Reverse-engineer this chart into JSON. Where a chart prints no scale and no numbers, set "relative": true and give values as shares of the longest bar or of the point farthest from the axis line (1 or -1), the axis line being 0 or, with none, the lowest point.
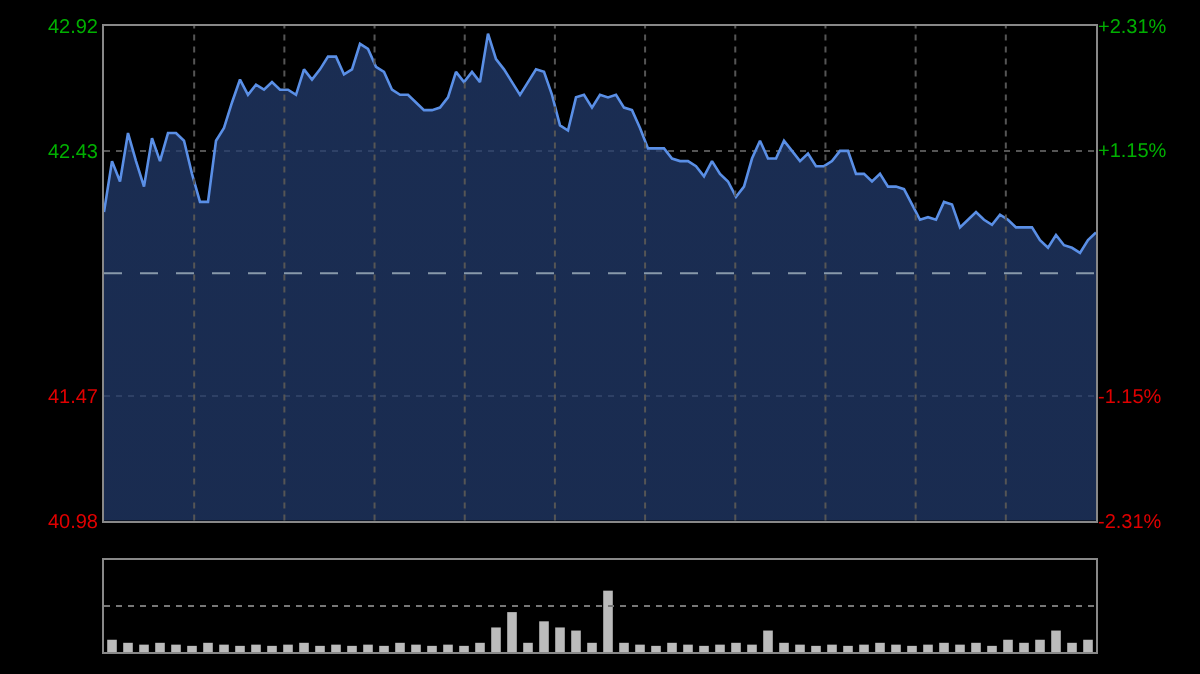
{
  "chart_data": [
    {
      "type": "area",
      "categories": [
        null,
        null,
        null,
        null,
        null,
        null,
        null,
        null,
        null,
        null,
        null,
        null,
        null,
        null,
        null,
        null,
        null,
        null,
        null,
        null,
        null,
        null,
        null,
        null,
        null,
        null,
        null,
        null,
        null,
        null,
        null,
        null,
        null,
        null,
        null,
        null,
        null,
        null,
        null,
        null,
        null,
        null,
        null,
        null,
        null,
        null,
        null,
        null,
        null,
        null,
        null,
        null,
        null,
        null,
        null,
        null,
        null,
        null,
        null,
        null,
        null,
        null,
        null,
        null,
        null,
        null,
        null,
        null,
        null,
        null,
        null,
        null,
        null,
        null,
        null,
        null,
        null,
        null,
        null,
        null,
        null,
        null,
        null,
        null,
        null,
        null,
        null,
        null,
        null,
        null,
        null,
        null,
        null,
        null,
        null,
        null,
        null,
        null,
        null,
        null,
        null,
        null,
        null,
        null,
        null,
        null,
        null,
        null,
        null,
        null,
        null,
        null,
        null,
        null,
        null,
        null,
        null,
        null,
        null,
        null,
        null,
        null,
        null,
        null,
        null
      ],
      "series": [
        {
          "color": "#5a8fe6",
          "values": [
            42.19,
            42.39,
            42.31,
            42.5,
            42.39,
            42.29,
            42.48,
            42.39,
            42.5,
            42.5,
            42.47,
            42.34,
            42.23,
            42.23,
            42.47,
            42.52,
            42.62,
            42.71,
            42.65,
            42.69,
            42.67,
            42.7,
            42.67,
            42.67,
            42.65,
            42.75,
            42.71,
            42.75,
            42.8,
            42.8,
            42.73,
            42.75,
            42.85,
            42.83,
            42.76,
            42.74,
            42.67,
            42.65,
            42.65,
            42.62,
            42.59,
            42.59,
            42.6,
            42.64,
            42.74,
            42.7,
            42.74,
            42.7,
            42.89,
            42.79,
            42.75,
            42.7,
            42.65,
            42.7,
            42.75,
            42.74,
            42.65,
            42.53,
            42.51,
            42.64,
            42.65,
            42.6,
            42.65,
            42.64,
            42.65,
            42.6,
            42.59,
            42.52,
            42.44,
            42.44,
            42.44,
            42.4,
            42.39,
            42.39,
            42.37,
            42.33,
            42.39,
            42.34,
            42.31,
            42.25,
            42.29,
            42.4,
            42.47,
            42.4,
            42.4,
            42.47,
            42.43,
            42.39,
            42.42,
            42.37,
            42.37,
            42.39,
            42.43,
            42.43,
            42.34,
            42.34,
            42.31,
            42.34,
            42.29,
            42.29,
            42.28,
            42.22,
            42.16,
            42.17,
            42.16,
            42.23,
            42.22,
            42.13,
            42.16,
            42.19,
            42.16,
            42.14,
            42.18,
            42.16,
            42.13,
            42.13,
            42.13,
            42.08,
            42.05,
            42.1,
            42.06,
            42.05,
            42.03,
            42.08,
            42.11
          ]
        }
      ],
      "ylim": [
        40.98,
        42.92
      ],
      "yticks": [
        42.92,
        42.43,
        41.47,
        40.98
      ],
      "y2lim": [
        -2.31,
        2.31
      ],
      "y2ticks": [
        {
          "value": 2.31,
          "label": "+2.31%"
        },
        {
          "value": 1.15,
          "label": "+1.15%"
        },
        {
          "value": -1.15,
          "label": "-1.15%"
        },
        {
          "value": -2.31,
          "label": "-2.31%"
        }
      ],
      "ref_lines": [
        {
          "axis": "y",
          "value": 41.95,
          "line_style": "dashed",
          "color": "#8899aa"
        }
      ],
      "grid": true,
      "legend": false,
      "tick_labels": "y",
      "line_style": "solid",
      "marker": "none"
    },
    {
      "type": "bar",
      "relative": true,
      "categories": [
        null,
        null,
        null,
        null,
        null,
        null,
        null,
        null,
        null,
        null,
        null,
        null,
        null,
        null,
        null,
        null,
        null,
        null,
        null,
        null,
        null,
        null,
        null,
        null,
        null,
        null,
        null,
        null,
        null,
        null,
        null,
        null,
        null,
        null,
        null,
        null,
        null,
        null,
        null,
        null,
        null,
        null,
        null,
        null,
        null,
        null,
        null,
        null,
        null,
        null,
        null,
        null,
        null,
        null,
        null,
        null,
        null,
        null,
        null,
        null,
        null,
        null
      ],
      "series": [
        {
          "color": "#bbbbbb",
          "values": [
            0.2,
            0.15,
            0.12,
            0.15,
            0.12,
            0.1,
            0.15,
            0.12,
            0.1,
            0.12,
            0.1,
            0.12,
            0.15,
            0.1,
            0.12,
            0.1,
            0.12,
            0.1,
            0.15,
            0.12,
            0.1,
            0.12,
            0.1,
            0.15,
            0.4,
            0.65,
            0.15,
            0.5,
            0.4,
            0.35,
            0.15,
            1.0,
            0.15,
            0.12,
            0.1,
            0.15,
            0.12,
            0.1,
            0.12,
            0.15,
            0.12,
            0.35,
            0.15,
            0.12,
            0.1,
            0.12,
            0.1,
            0.12,
            0.15,
            0.12,
            0.1,
            0.12,
            0.15,
            0.12,
            0.15,
            0.1,
            0.2,
            0.15,
            0.2,
            0.35,
            0.15,
            0.2
          ]
        }
      ],
      "ref_lines": [
        {
          "axis": "y",
          "value": 0.75,
          "line_style": "dotted",
          "color": "#777777"
        }
      ],
      "legend": false,
      "tick_labels": false
    }
  ]
}
